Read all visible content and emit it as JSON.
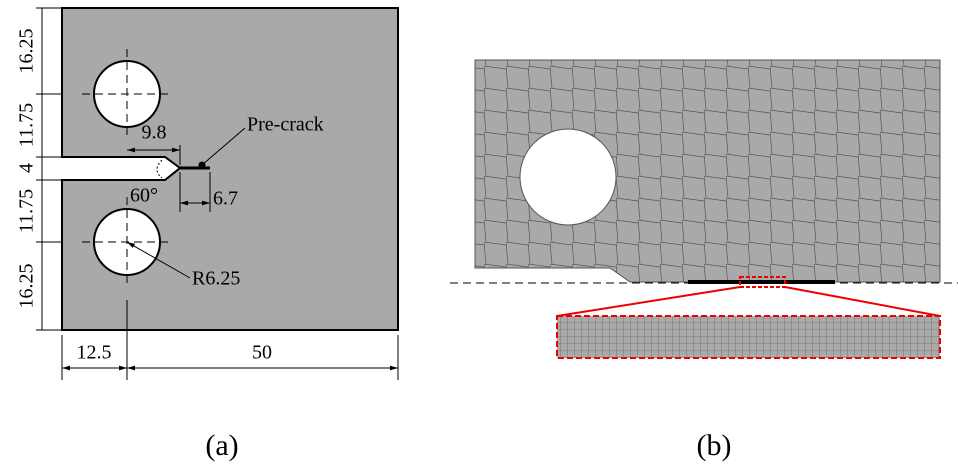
{
  "panel_a": {
    "dimensions": {
      "left": [
        "16.25",
        "11.75",
        "4",
        "11.75",
        "16.25"
      ],
      "bottom": [
        "12.5",
        "50"
      ],
      "notch_depth": "9.8",
      "crack_length": "6.7",
      "notch_angle": "60°",
      "hole_radius": "R6.25"
    },
    "labels": {
      "pre_crack": "Pre-crack"
    },
    "caption": "(a)"
  },
  "panel_b": {
    "caption": "(b)"
  }
}
